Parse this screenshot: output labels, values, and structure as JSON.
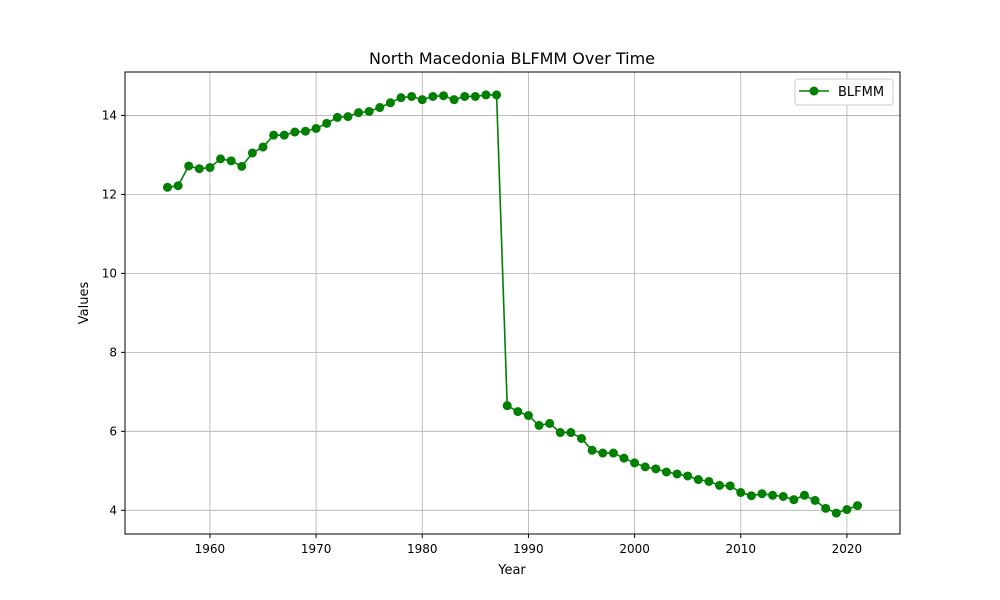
{
  "chart_data": {
    "type": "line",
    "title": "North Macedonia BLFMM Over Time",
    "xlabel": "Year",
    "ylabel": "Values",
    "xlim": [
      1952,
      2025
    ],
    "ylim": [
      3.4,
      15.1
    ],
    "xticks": [
      1960,
      1970,
      1980,
      1990,
      2000,
      2010,
      2020
    ],
    "yticks": [
      4,
      6,
      8,
      10,
      12,
      14
    ],
    "grid": true,
    "legend_position": "top-right",
    "series": [
      {
        "name": "BLFMM",
        "color": "#008000",
        "marker": "circle",
        "x": [
          1956,
          1957,
          1958,
          1959,
          1960,
          1961,
          1962,
          1963,
          1964,
          1965,
          1966,
          1967,
          1968,
          1969,
          1970,
          1971,
          1972,
          1973,
          1974,
          1975,
          1976,
          1977,
          1978,
          1979,
          1980,
          1981,
          1982,
          1983,
          1984,
          1985,
          1986,
          1987,
          1988,
          1989,
          1990,
          1991,
          1992,
          1993,
          1994,
          1995,
          1996,
          1997,
          1998,
          1999,
          2000,
          2001,
          2002,
          2003,
          2004,
          2005,
          2006,
          2007,
          2008,
          2009,
          2010,
          2011,
          2012,
          2013,
          2014,
          2015,
          2016,
          2017,
          2018,
          2019,
          2020,
          2021
        ],
        "values": [
          12.18,
          12.22,
          12.72,
          12.65,
          12.68,
          12.9,
          12.85,
          12.71,
          13.05,
          13.2,
          13.5,
          13.5,
          13.58,
          13.6,
          13.67,
          13.8,
          13.95,
          13.97,
          14.07,
          14.1,
          14.2,
          14.32,
          14.45,
          14.48,
          14.4,
          14.48,
          14.5,
          14.4,
          14.48,
          14.48,
          14.52,
          14.52,
          6.65,
          6.5,
          6.4,
          6.15,
          6.2,
          5.97,
          5.97,
          5.82,
          5.52,
          5.45,
          5.45,
          5.32,
          5.2,
          5.1,
          5.05,
          4.97,
          4.92,
          4.87,
          4.78,
          4.73,
          4.63,
          4.62,
          4.45,
          4.37,
          4.42,
          4.38,
          4.35,
          4.27,
          4.38,
          4.25,
          4.05,
          3.93,
          4.02,
          4.12
        ]
      }
    ]
  }
}
